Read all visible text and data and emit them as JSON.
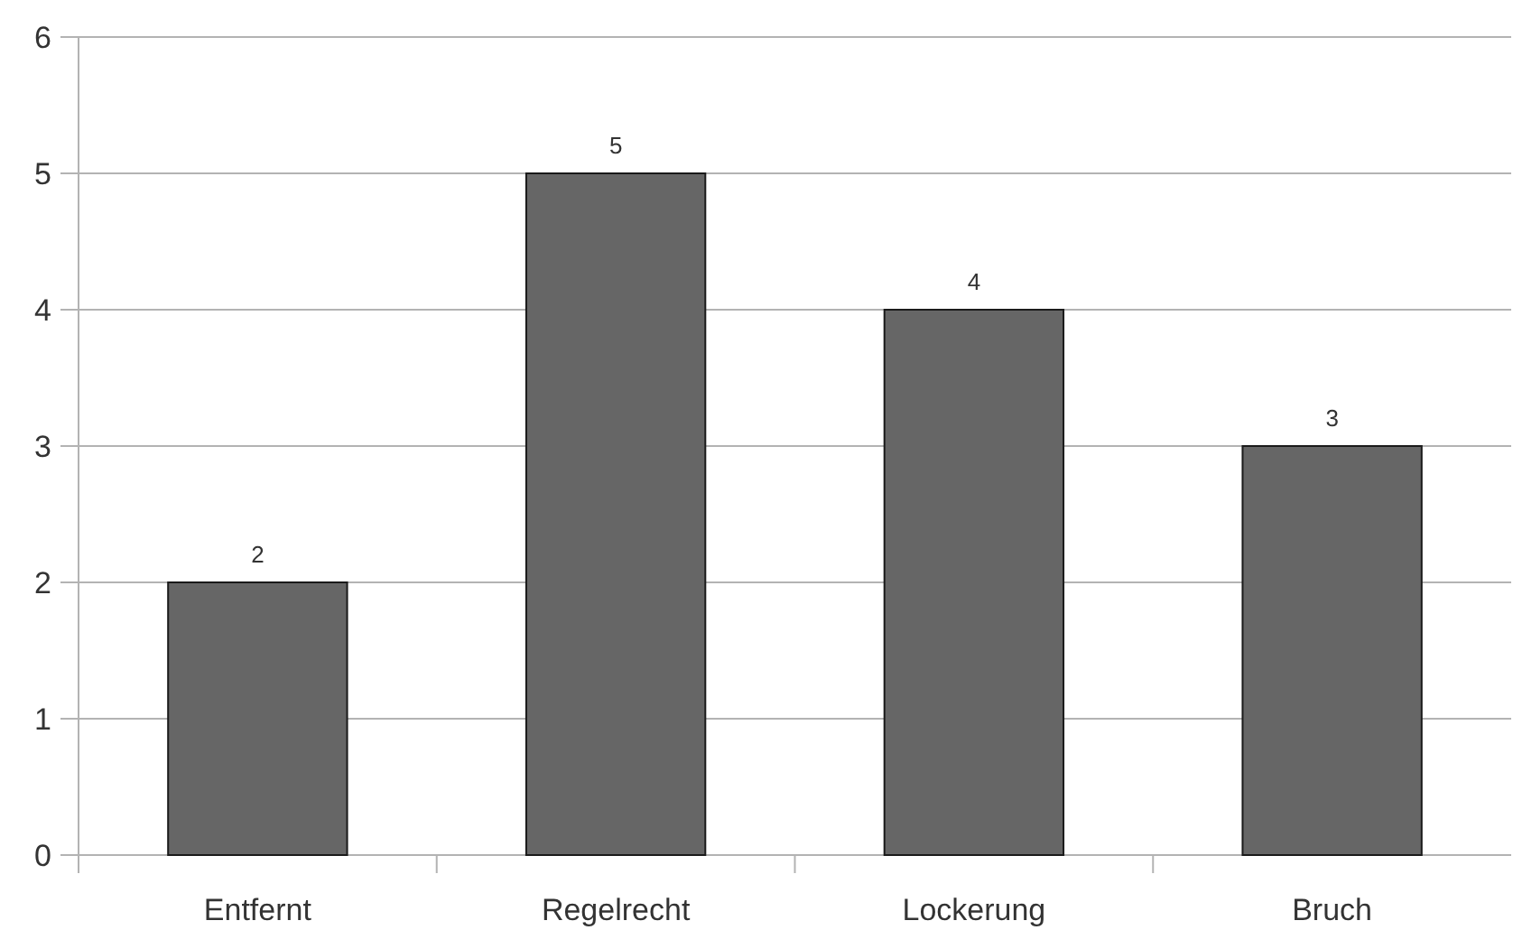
{
  "chart_data": {
    "type": "bar",
    "categories": [
      "Entfernt",
      "Regelrecht",
      "Lockerung",
      "Bruch"
    ],
    "values": [
      2,
      5,
      4,
      3
    ],
    "color": "#666666",
    "ylim": [
      0,
      6
    ],
    "yticks": [
      0,
      1,
      2,
      3,
      4,
      5,
      6
    ],
    "grid": "y",
    "data_labels": true
  }
}
